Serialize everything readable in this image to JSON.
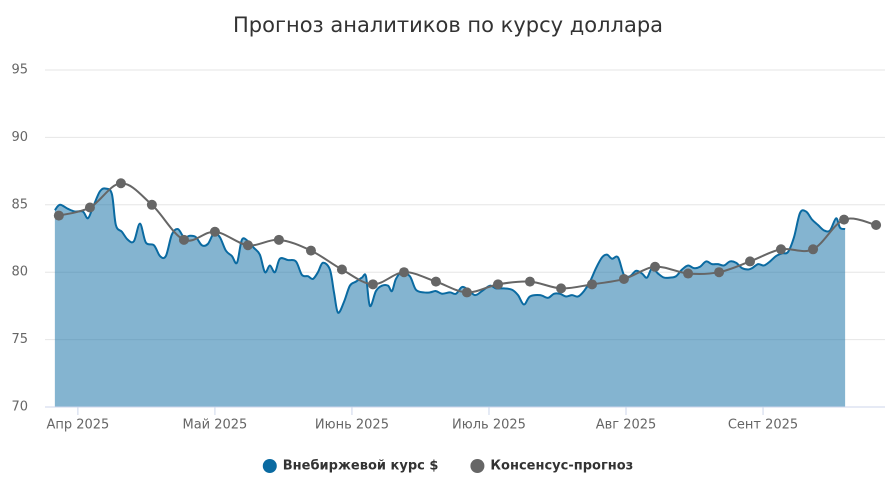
{
  "chart_data": {
    "type": "area-line",
    "title": "Прогноз аналитиков по курсу доллара",
    "xlim": [
      3.76,
      9.89
    ],
    "xticks": [
      {
        "value": 4,
        "label": "Апр 2025"
      },
      {
        "value": 5,
        "label": "Май 2025"
      },
      {
        "value": 6,
        "label": "Июнь 2025"
      },
      {
        "value": 7,
        "label": "Июль 2025"
      },
      {
        "value": 8,
        "label": "Авг 2025"
      },
      {
        "value": 9,
        "label": "Сент 2025"
      }
    ],
    "ylim": [
      70,
      95
    ],
    "yticks": [
      70,
      75,
      80,
      85,
      90,
      95
    ],
    "grid": true,
    "legend": "bottom",
    "series": [
      {
        "name": "Внебиржевой курс $",
        "color": "#0a6aa1",
        "kind": "area",
        "x": [
          3.832,
          3.869,
          3.927,
          3.978,
          4.036,
          4.073,
          4.109,
          4.161,
          4.204,
          4.248,
          4.277,
          4.321,
          4.365,
          4.409,
          4.453,
          4.496,
          4.555,
          4.599,
          4.642,
          4.686,
          4.73,
          4.774,
          4.818,
          4.861,
          4.905,
          4.949,
          4.993,
          5.036,
          5.08,
          5.124,
          5.161,
          5.197,
          5.241,
          5.285,
          5.328,
          5.365,
          5.401,
          5.438,
          5.474,
          5.533,
          5.591,
          5.635,
          5.679,
          5.715,
          5.752,
          5.788,
          5.839,
          5.869,
          5.898,
          5.942,
          5.985,
          6.029,
          6.073,
          6.102,
          6.131,
          6.175,
          6.219,
          6.263,
          6.292,
          6.321,
          6.365,
          6.423,
          6.467,
          6.526,
          6.569,
          6.613,
          6.657,
          6.715,
          6.759,
          6.803,
          6.847,
          6.898,
          6.949,
          7.007,
          7.051,
          7.109,
          7.168,
          7.212,
          7.255,
          7.299,
          7.372,
          7.431,
          7.474,
          7.518,
          7.562,
          7.606,
          7.65,
          7.693,
          7.737,
          7.781,
          7.825,
          7.861,
          7.898,
          7.942,
          7.985,
          8.029,
          8.073,
          8.117,
          8.153,
          8.19,
          8.234,
          8.277,
          8.321,
          8.365,
          8.409,
          8.453,
          8.496,
          8.54,
          8.584,
          8.628,
          8.672,
          8.715,
          8.759,
          8.803,
          8.847,
          8.891,
          8.92,
          8.964,
          9.007,
          9.051,
          9.095,
          9.139,
          9.182,
          9.226,
          9.27,
          9.314,
          9.358,
          9.401,
          9.445,
          9.489,
          9.533,
          9.562,
          9.599
        ],
        "values": [
          84.6,
          85.0,
          84.7,
          84.5,
          84.5,
          84.0,
          84.8,
          86.0,
          86.2,
          85.8,
          83.5,
          83.0,
          82.4,
          82.3,
          83.6,
          82.2,
          82.0,
          81.2,
          81.2,
          82.8,
          83.2,
          82.6,
          82.7,
          82.6,
          82.0,
          82.1,
          82.9,
          82.6,
          81.6,
          81.2,
          80.7,
          82.4,
          82.3,
          81.8,
          81.3,
          80.0,
          80.5,
          80.0,
          81.0,
          80.9,
          80.8,
          79.8,
          79.7,
          79.5,
          80.0,
          80.7,
          80.2,
          78.5,
          77.0,
          77.8,
          79.0,
          79.3,
          79.6,
          79.7,
          77.5,
          78.6,
          79.0,
          79.0,
          78.6,
          79.5,
          80.0,
          79.7,
          78.7,
          78.5,
          78.5,
          78.6,
          78.4,
          78.5,
          78.4,
          78.9,
          78.7,
          78.3,
          78.6,
          79.0,
          78.8,
          78.8,
          78.7,
          78.3,
          77.6,
          78.2,
          78.3,
          78.1,
          78.4,
          78.4,
          78.2,
          78.3,
          78.2,
          78.6,
          79.3,
          80.3,
          81.1,
          81.3,
          81.0,
          81.1,
          79.8,
          79.7,
          80.1,
          79.9,
          79.6,
          80.3,
          79.9,
          79.6,
          79.6,
          79.7,
          80.2,
          80.5,
          80.3,
          80.4,
          80.8,
          80.6,
          80.6,
          80.5,
          80.8,
          80.7,
          80.3,
          80.2,
          80.3,
          80.6,
          80.5,
          80.8,
          81.2,
          81.4,
          81.5,
          82.6,
          84.4,
          84.5,
          83.9,
          83.5,
          83.1,
          83.1,
          84.0,
          83.3,
          83.2
        ]
      },
      {
        "name": "Консенсус-прогноз",
        "color": "#666666",
        "kind": "line",
        "x": [
          3.861,
          4.088,
          4.314,
          4.54,
          4.774,
          5.0,
          5.241,
          5.467,
          5.701,
          5.927,
          6.153,
          6.38,
          6.613,
          6.839,
          7.066,
          7.299,
          7.526,
          7.752,
          7.985,
          8.212,
          8.453,
          8.679,
          8.905,
          9.131,
          9.365,
          9.591,
          9.825
        ],
        "values": [
          84.2,
          84.8,
          86.6,
          85.0,
          82.4,
          83.0,
          82.0,
          82.4,
          81.6,
          80.2,
          79.1,
          80.0,
          79.3,
          78.5,
          79.1,
          79.3,
          78.8,
          79.1,
          79.5,
          80.4,
          79.9,
          80.0,
          80.8,
          81.7,
          81.7,
          83.9,
          83.5
        ]
      }
    ]
  }
}
